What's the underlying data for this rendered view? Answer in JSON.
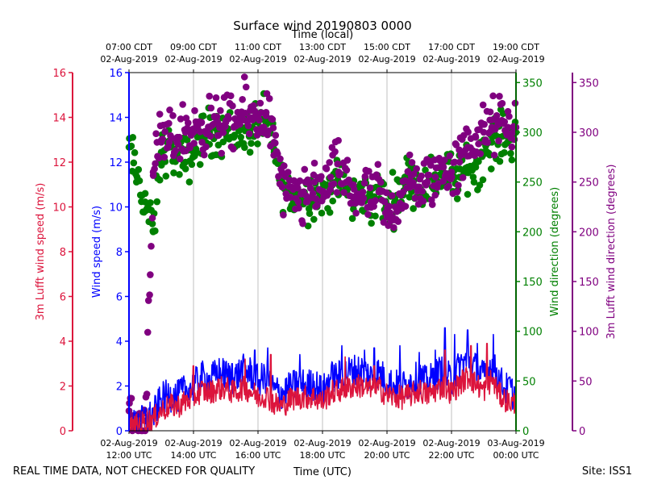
{
  "chart_data": {
    "type": "scatter",
    "title": "Surface wind 20190803 0000",
    "top_axis_label": "Time (local)",
    "xlabel": "Time (UTC)",
    "footer_left": "REAL TIME DATA, NOT CHECKED FOR QUALITY",
    "footer_right": "Site: ISS1",
    "x_range_hours_utc": [
      12,
      24
    ],
    "bottom_ticks": [
      {
        "hour": 12,
        "line1": "02-Aug-2019",
        "line2": "12:00 UTC"
      },
      {
        "hour": 14,
        "line1": "02-Aug-2019",
        "line2": "14:00 UTC"
      },
      {
        "hour": 16,
        "line1": "02-Aug-2019",
        "line2": "16:00 UTC"
      },
      {
        "hour": 18,
        "line1": "02-Aug-2019",
        "line2": "18:00 UTC"
      },
      {
        "hour": 20,
        "line1": "02-Aug-2019",
        "line2": "20:00 UTC"
      },
      {
        "hour": 22,
        "line1": "02-Aug-2019",
        "line2": "22:00 UTC"
      },
      {
        "hour": 24,
        "line1": "03-Aug-2019",
        "line2": "00:00 UTC"
      }
    ],
    "top_ticks": [
      {
        "hour": 12,
        "line1": "07:00 CDT",
        "line2": "02-Aug-2019"
      },
      {
        "hour": 14,
        "line1": "09:00 CDT",
        "line2": "02-Aug-2019"
      },
      {
        "hour": 16,
        "line1": "11:00 CDT",
        "line2": "02-Aug-2019"
      },
      {
        "hour": 18,
        "line1": "13:00 CDT",
        "line2": "02-Aug-2019"
      },
      {
        "hour": 20,
        "line1": "15:00 CDT",
        "line2": "02-Aug-2019"
      },
      {
        "hour": 22,
        "line1": "17:00 CDT",
        "line2": "02-Aug-2019"
      },
      {
        "hour": 24,
        "line1": "19:00 CDT",
        "line2": "02-Aug-2019"
      }
    ],
    "axes": {
      "lufft_speed": {
        "label": "3m Lufft wind speed (m/s)",
        "ylim": [
          0,
          16
        ],
        "ticks": [
          0,
          2,
          4,
          6,
          8,
          10,
          12,
          14,
          16
        ],
        "color": "#dc143c"
      },
      "wind_speed": {
        "label": "Wind speed (m/s)",
        "ylim": [
          0,
          16
        ],
        "ticks": [
          0,
          2,
          4,
          6,
          8,
          10,
          12,
          14,
          16
        ],
        "color": "#0000ff"
      },
      "wind_dir": {
        "label": "Wind direction (degrees)",
        "ylim": [
          0,
          360
        ],
        "ticks": [
          0,
          50,
          100,
          150,
          200,
          250,
          300,
          350
        ],
        "color": "#008000"
      },
      "lufft_dir": {
        "label": "3m Lufft wind direction (degrees)",
        "ylim": [
          0,
          360
        ],
        "ticks": [
          0,
          50,
          100,
          150,
          200,
          250,
          300,
          350
        ],
        "color": "#800080"
      }
    },
    "series": [
      {
        "name": "Wind speed (m/s)",
        "kind": "line",
        "axis": "wind_speed",
        "color": "#0000ff",
        "x": [
          12.0,
          12.25,
          12.5,
          12.75,
          13.0,
          13.25,
          13.5,
          13.75,
          14.0,
          14.25,
          14.5,
          14.75,
          15.0,
          15.25,
          15.5,
          15.75,
          16.0,
          16.25,
          16.5,
          16.75,
          17.0,
          17.25,
          17.5,
          17.75,
          18.0,
          18.25,
          18.5,
          18.75,
          19.0,
          19.25,
          19.5,
          19.75,
          20.0,
          20.25,
          20.5,
          20.75,
          21.0,
          21.25,
          21.5,
          21.75,
          22.0,
          22.25,
          22.5,
          22.75,
          23.0,
          23.25,
          23.5,
          23.75,
          24.0
        ],
        "y": [
          0.1,
          0.3,
          0.5,
          0.7,
          1.4,
          1.6,
          1.5,
          1.8,
          2.0,
          2.4,
          2.2,
          2.6,
          2.5,
          2.3,
          2.7,
          2.6,
          2.2,
          2.4,
          1.8,
          1.7,
          1.9,
          2.1,
          2.0,
          2.1,
          1.7,
          2.4,
          2.4,
          2.6,
          2.7,
          2.7,
          2.4,
          2.6,
          2.2,
          2.0,
          2.0,
          2.2,
          2.4,
          2.1,
          2.5,
          2.7,
          2.2,
          2.9,
          3.2,
          2.8,
          2.4,
          3.0,
          2.2,
          1.8,
          1.6
        ],
        "peak_x": [
          13.6,
          15.2,
          15.9,
          16.3,
          17.3,
          18.6,
          19.3,
          19.6,
          20.4,
          21.0,
          21.5,
          21.8,
          22.1,
          22.5,
          22.8,
          23.3,
          23.8
        ],
        "peak_y": [
          2.3,
          3.0,
          3.6,
          3.7,
          3.4,
          3.8,
          3.6,
          3.7,
          3.8,
          3.5,
          3.6,
          4.6,
          4.3,
          4.5,
          3.9,
          4.3,
          2.4
        ]
      },
      {
        "name": "3m Lufft wind speed (m/s)",
        "kind": "line",
        "axis": "lufft_speed",
        "color": "#dc143c",
        "x": [
          12.0,
          12.25,
          12.5,
          12.75,
          13.0,
          13.25,
          13.5,
          13.75,
          14.0,
          14.25,
          14.5,
          14.75,
          15.0,
          15.25,
          15.5,
          15.75,
          16.0,
          16.25,
          16.5,
          16.75,
          17.0,
          17.25,
          17.5,
          17.75,
          18.0,
          18.25,
          18.5,
          18.75,
          19.0,
          19.25,
          19.5,
          19.75,
          20.0,
          20.25,
          20.5,
          20.75,
          21.0,
          21.25,
          21.5,
          21.75,
          22.0,
          22.25,
          22.5,
          22.75,
          23.0,
          23.25,
          23.5,
          23.75,
          24.0
        ],
        "y": [
          0.1,
          0.2,
          0.4,
          0.5,
          0.9,
          1.1,
          1.1,
          1.3,
          1.5,
          1.8,
          1.7,
          1.9,
          1.9,
          1.7,
          1.9,
          1.8,
          1.5,
          1.6,
          1.2,
          1.1,
          1.4,
          1.5,
          1.5,
          1.5,
          1.3,
          1.7,
          1.8,
          1.9,
          2.0,
          2.0,
          1.8,
          1.9,
          1.6,
          1.5,
          1.5,
          1.6,
          1.8,
          1.6,
          1.8,
          2.0,
          1.7,
          2.1,
          2.4,
          2.1,
          1.8,
          2.3,
          1.6,
          1.3,
          1.2
        ],
        "peak_x": [
          14.0,
          15.6,
          16.4,
          18.7,
          19.6,
          21.8,
          22.6,
          23.1
        ],
        "peak_y": [
          2.9,
          3.2,
          3.4,
          3.3,
          2.9,
          3.6,
          3.8,
          3.9
        ]
      },
      {
        "name": "Wind direction (degrees)",
        "kind": "scatter",
        "axis": "wind_dir",
        "color": "#008000",
        "x": [
          12.0,
          12.25,
          12.5,
          12.75,
          13.0,
          13.25,
          13.5,
          13.75,
          14.0,
          14.25,
          14.5,
          14.75,
          15.0,
          15.25,
          15.5,
          15.75,
          16.0,
          16.25,
          16.5,
          16.75,
          17.0,
          17.25,
          17.5,
          17.75,
          18.0,
          18.25,
          18.5,
          18.75,
          19.0,
          19.25,
          19.5,
          19.75,
          20.0,
          20.25,
          20.5,
          20.75,
          21.0,
          21.25,
          21.5,
          21.75,
          22.0,
          22.25,
          22.5,
          22.75,
          23.0,
          23.25,
          23.5,
          23.75,
          24.0
        ],
        "y": [
          285,
          255,
          230,
          200,
          280,
          285,
          275,
          270,
          280,
          295,
          300,
          300,
          300,
          295,
          305,
          300,
          310,
          310,
          280,
          250,
          235,
          235,
          235,
          240,
          235,
          245,
          250,
          245,
          230,
          240,
          230,
          240,
          225,
          235,
          250,
          255,
          245,
          250,
          255,
          260,
          255,
          255,
          265,
          265,
          280,
          290,
          295,
          295,
          300
        ],
        "spread": 20
      },
      {
        "name": "3m Lufft wind direction (degrees)",
        "kind": "scatter",
        "axis": "lufft_dir",
        "color": "#800080",
        "x": [
          12.0,
          12.25,
          12.5,
          12.75,
          13.0,
          13.25,
          13.5,
          13.75,
          14.0,
          14.25,
          14.5,
          14.75,
          15.0,
          15.25,
          15.5,
          15.75,
          16.0,
          16.25,
          16.5,
          16.75,
          17.0,
          17.25,
          17.5,
          17.75,
          18.0,
          18.25,
          18.5,
          18.75,
          19.0,
          19.25,
          19.5,
          19.75,
          20.0,
          20.25,
          20.5,
          20.75,
          21.0,
          21.25,
          21.5,
          21.75,
          22.0,
          22.25,
          22.5,
          22.75,
          23.0,
          23.25,
          23.5,
          23.75,
          24.0
        ],
        "y": [
          20,
          5,
          10,
          260,
          290,
          290,
          295,
          300,
          300,
          310,
          305,
          310,
          310,
          305,
          320,
          315,
          315,
          320,
          290,
          245,
          235,
          230,
          230,
          250,
          240,
          255,
          260,
          250,
          235,
          240,
          230,
          240,
          215,
          225,
          240,
          250,
          245,
          250,
          255,
          265,
          260,
          270,
          285,
          295,
          300,
          305,
          310,
          305,
          305
        ],
        "spread": 24
      }
    ]
  }
}
